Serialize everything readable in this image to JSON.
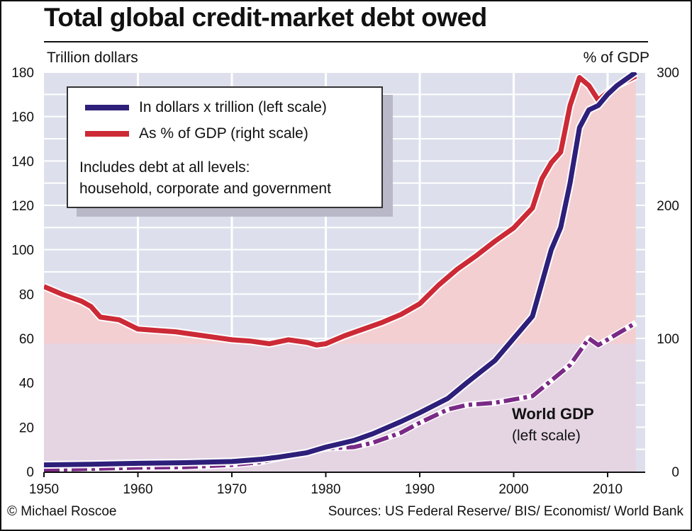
{
  "title": "Total global credit-market debt owed",
  "left_axis_label": "Trillion dollars",
  "right_axis_label": "% of GDP",
  "footer": {
    "credit": "© Michael Roscoe",
    "sources": "Sources: US Federal Reserve/ BIS/ Economist/ World Bank"
  },
  "legend": {
    "items": [
      "In dollars x trillion (left scale)",
      "As % of GDP (right scale)"
    ],
    "note_line1": "Includes debt at all levels:",
    "note_line2": "household, corporate and government"
  },
  "annotation": {
    "gdp_label": "World GDP",
    "gdp_sub": "(left scale)"
  },
  "colors": {
    "debt_dollars": "#2e1f7a",
    "debt_pct": "#cc2a36",
    "world_gdp": "#7a2a86",
    "plot_bg": "#dde0ec",
    "pct_fill": "#f3cfd1",
    "gdp_fill": "#e2d6e6"
  },
  "chart_data": {
    "type": "line",
    "xlim": [
      1950,
      2014
    ],
    "ylim_left": [
      0,
      180
    ],
    "ylim_right": [
      0,
      300
    ],
    "xticks": [
      "1950",
      "1960",
      "1970",
      "1980",
      "1990",
      "2000",
      "2010"
    ],
    "yticks_left": [
      "0",
      "20",
      "40",
      "60",
      "80",
      "100",
      "120",
      "140",
      "160",
      "180"
    ],
    "yticks_right": [
      "0",
      "100",
      "200",
      "300"
    ],
    "series": [
      {
        "name": "In dollars x trillion (left scale)",
        "axis": "left",
        "x": [
          1950,
          1955,
          1960,
          1965,
          1970,
          1973,
          1975,
          1978,
          1980,
          1983,
          1985,
          1988,
          1990,
          1993,
          1995,
          1998,
          2000,
          2002,
          2004,
          2005,
          2006,
          2007,
          2008,
          2009,
          2010,
          2011,
          2013
        ],
        "values": [
          3,
          3.3,
          3.7,
          4,
          4.5,
          5.5,
          6.5,
          8.5,
          11,
          14,
          17,
          22.5,
          26.5,
          33,
          40,
          50,
          60,
          70,
          100,
          110,
          130,
          155,
          163,
          165,
          170,
          174,
          180
        ]
      },
      {
        "name": "As % of GDP (right scale)",
        "axis": "right",
        "x": [
          1950,
          1952,
          1954,
          1955,
          1956,
          1958,
          1960,
          1962,
          1964,
          1966,
          1968,
          1970,
          1972,
          1974,
          1976,
          1978,
          1979,
          1980,
          1982,
          1984,
          1986,
          1988,
          1990,
          1992,
          1994,
          1996,
          1998,
          2000,
          2002,
          2003,
          2004,
          2005,
          2006,
          2007,
          2008,
          2009,
          2010,
          2011,
          2013
        ],
        "values": [
          139,
          133,
          128,
          124,
          116,
          114,
          107,
          106,
          105,
          103,
          101,
          99,
          98,
          96,
          99,
          97,
          95,
          96,
          102,
          107,
          112,
          118,
          126,
          140,
          152,
          162,
          173,
          183,
          198,
          220,
          232,
          240,
          275,
          296,
          290,
          279,
          285,
          290,
          297
        ]
      },
      {
        "name": "World GDP (left scale)",
        "axis": "left",
        "x": [
          1950,
          1955,
          1960,
          1965,
          1970,
          1973,
          1975,
          1978,
          1980,
          1983,
          1985,
          1988,
          1990,
          1993,
          1995,
          1998,
          2000,
          2002,
          2004,
          2006,
          2008,
          2009,
          2011,
          2013
        ],
        "values": [
          0.8,
          1.2,
          1.8,
          2,
          3,
          4.2,
          6,
          8.5,
          10.5,
          11,
          13,
          17.5,
          22,
          28,
          30,
          31,
          32.5,
          34,
          41,
          48,
          60,
          57,
          62,
          67
        ]
      }
    ]
  }
}
